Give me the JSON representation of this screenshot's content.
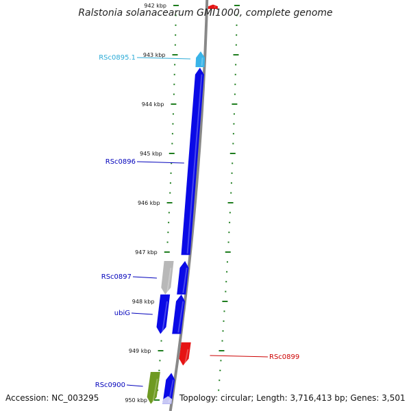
{
  "title": "Ralstonia solanacearum GMI1000, complete genome",
  "footer": {
    "accession": "Accession: NC_003295",
    "summary": "Topology: circular; Length: 3,716,413 bp; Genes: 3,501"
  },
  "colors": {
    "backbone": "#888888",
    "tick": "#1e7d1e",
    "gene_blue": "#0a0ae6",
    "gene_lightblue": "#3ab4e8",
    "gene_red": "#e61414",
    "gene_grey": "#b8b8b8",
    "gene_olive": "#6e9a22",
    "gene_pale": "#c8c8f4",
    "label_blue": "#0000bb",
    "label_cyan": "#2aaad6",
    "label_red": "#cc0000"
  },
  "chart_data": {
    "type": "genome-map",
    "axis_unit": "kbp",
    "tick_labels": [
      "942 kbp",
      "943 kbp",
      "944 kbp",
      "945 kbp",
      "946 kbp",
      "947 kbp",
      "948 kbp",
      "949 kbp",
      "950 kbp"
    ],
    "tick_values": [
      942,
      943,
      944,
      945,
      946,
      947,
      948,
      949,
      950
    ],
    "genes": [
      {
        "id": "pre-top",
        "label": "",
        "start": 941.98,
        "end": 942.07,
        "strand": "+",
        "color": "gene_red",
        "track": "outer"
      },
      {
        "id": "RSc0895.1",
        "label": "RSc0895.1",
        "start": 942.93,
        "end": 943.25,
        "strand": "+",
        "color": "gene_lightblue",
        "track": "inner"
      },
      {
        "id": "RSc0896",
        "label": "RSc0896",
        "start": 943.26,
        "end": 947.06,
        "strand": "+",
        "color": "gene_blue",
        "track": "inner"
      },
      {
        "id": "RSc0897",
        "label": "RSc0897",
        "start": 947.18,
        "end": 947.86,
        "strand": "-",
        "color": "gene_grey",
        "track": "mid"
      },
      {
        "id": "RSc0897b",
        "label": "",
        "start": 947.18,
        "end": 947.86,
        "strand": "+",
        "color": "gene_blue",
        "track": "inner"
      },
      {
        "id": "ubiG",
        "label": "ubiG",
        "start": 947.86,
        "end": 948.66,
        "strand": "-",
        "color": "gene_blue",
        "track": "mid"
      },
      {
        "id": "ubiGb",
        "label": "",
        "start": 947.86,
        "end": 948.66,
        "strand": "+",
        "color": "gene_blue",
        "track": "inner"
      },
      {
        "id": "RSc0899",
        "label": "RSc0899",
        "start": 948.83,
        "end": 949.3,
        "strand": "-",
        "color": "gene_red",
        "track": "outer"
      },
      {
        "id": "RSc0900",
        "label": "RSc0900",
        "start": 949.43,
        "end": 950.08,
        "strand": "-",
        "color": "gene_olive",
        "track": "mid"
      },
      {
        "id": "RSc0901",
        "label": "",
        "start": 949.45,
        "end": 950.08,
        "strand": "+",
        "color": "gene_blue",
        "track": "inner"
      },
      {
        "id": "RSc0901b",
        "label": "",
        "start": 949.92,
        "end": 950.08,
        "strand": "+",
        "color": "gene_pale",
        "track": "inner"
      }
    ]
  }
}
